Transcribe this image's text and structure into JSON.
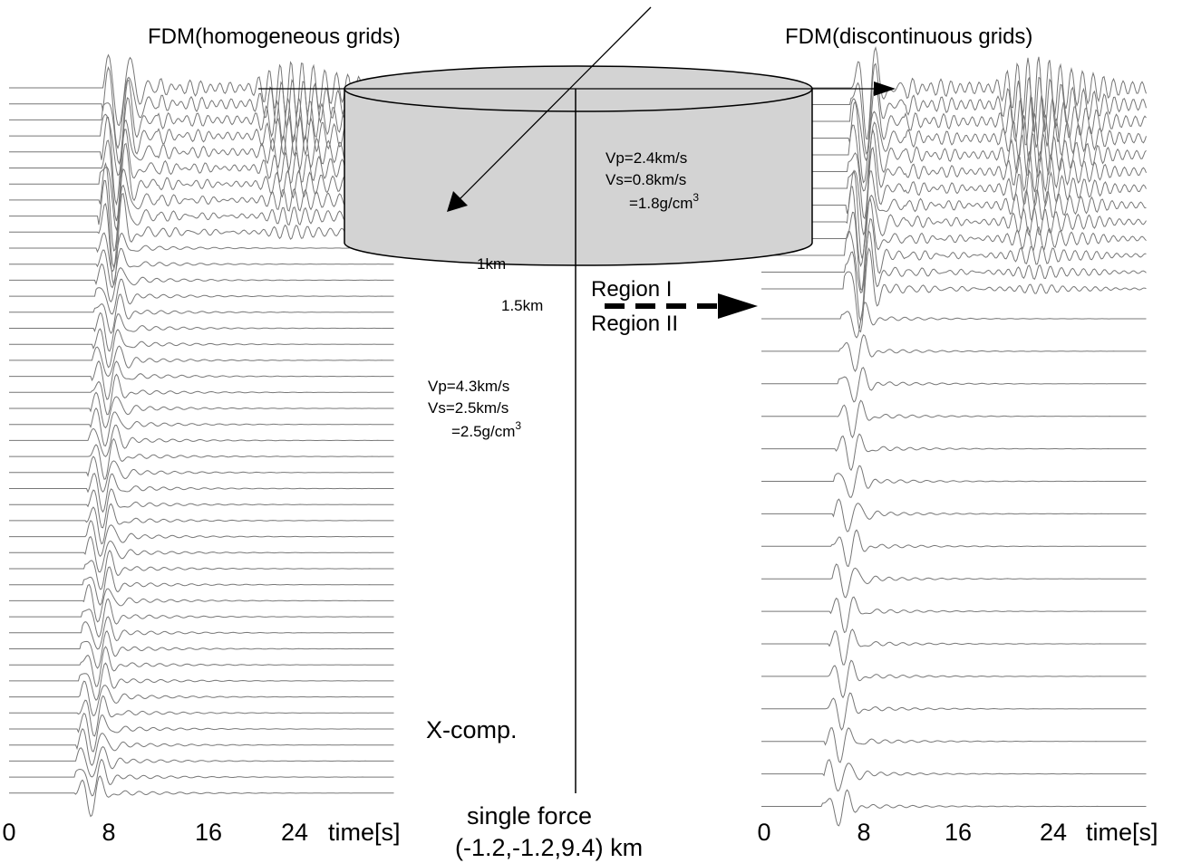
{
  "left_panel": {
    "title": "FDM(homogeneous grids)",
    "ticks": [
      "0",
      "8",
      "16",
      "24"
    ],
    "axis_label": "time[s]"
  },
  "right_panel": {
    "title": "FDM(discontinuous grids)",
    "ticks": [
      "0",
      "8",
      "16",
      "24"
    ],
    "axis_label": "time[s]"
  },
  "basin": {
    "vp": "Vp=2.4km/s",
    "vs": "Vs=0.8km/s",
    "rho": "=1.8g/cm",
    "rho_sup": "3",
    "depth": "1km"
  },
  "interface": {
    "depth": "1.5km",
    "upper": "Region I",
    "lower": "Region II"
  },
  "bedrock": {
    "vp": "Vp=4.3km/s",
    "vs": "Vs=2.5km/s",
    "rho": "=2.5g/cm",
    "rho_sup": "3"
  },
  "component": "X-comp.",
  "source": {
    "label": "single force",
    "location": "(-1.2,-1.2,9.4) km"
  }
}
